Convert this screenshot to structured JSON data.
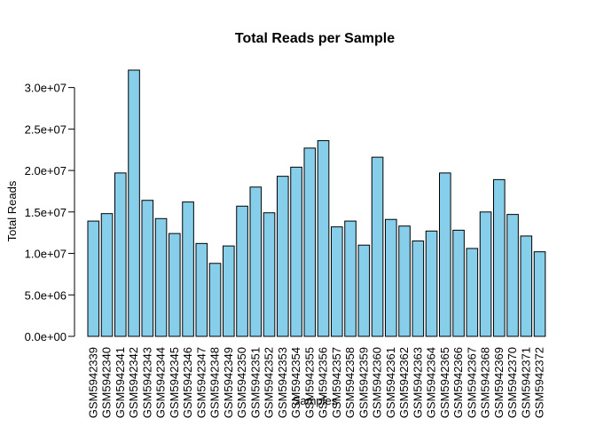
{
  "chart_data": {
    "type": "bar",
    "title": "Total Reads per Sample",
    "xlabel": "Samples",
    "ylabel": "Total Reads",
    "categories": [
      "GSM5942339",
      "GSM5942340",
      "GSM5942341",
      "GSM5942342",
      "GSM5942343",
      "GSM5942344",
      "GSM5942345",
      "GSM5942346",
      "GSM5942347",
      "GSM5942348",
      "GSM5942349",
      "GSM5942350",
      "GSM5942351",
      "GSM5942352",
      "GSM5942353",
      "GSM5942354",
      "GSM5942355",
      "GSM5942356",
      "GSM5942357",
      "GSM5942358",
      "GSM5942359",
      "GSM5942360",
      "GSM5942361",
      "GSM5942362",
      "GSM5942363",
      "GSM5942364",
      "GSM5942365",
      "GSM5942366",
      "GSM5942367",
      "GSM5942368",
      "GSM5942369",
      "GSM5942370",
      "GSM5942371",
      "GSM5942372"
    ],
    "values": [
      13900000,
      14800000,
      19700000,
      32100000,
      16400000,
      14200000,
      12400000,
      16200000,
      11200000,
      8800000,
      10900000,
      15700000,
      18000000,
      14900000,
      19300000,
      20400000,
      22700000,
      23600000,
      13200000,
      13900000,
      11000000,
      21600000,
      14100000,
      13300000,
      11500000,
      12700000,
      19700000,
      12800000,
      10600000,
      15000000,
      18900000,
      14700000,
      12100000,
      10200000
    ],
    "yticks": [
      0,
      5000000,
      10000000,
      15000000,
      20000000,
      25000000,
      30000000
    ],
    "ytick_labels": [
      "0.0e+00",
      "5.0e+06",
      "1.0e+07",
      "1.5e+07",
      "2.0e+07",
      "2.5e+07",
      "3.0e+07"
    ],
    "ylim": [
      0,
      32100000
    ],
    "bar_color": "#87ceeb",
    "bar_edge_color": "#000000",
    "grid": false,
    "legend": "none"
  }
}
